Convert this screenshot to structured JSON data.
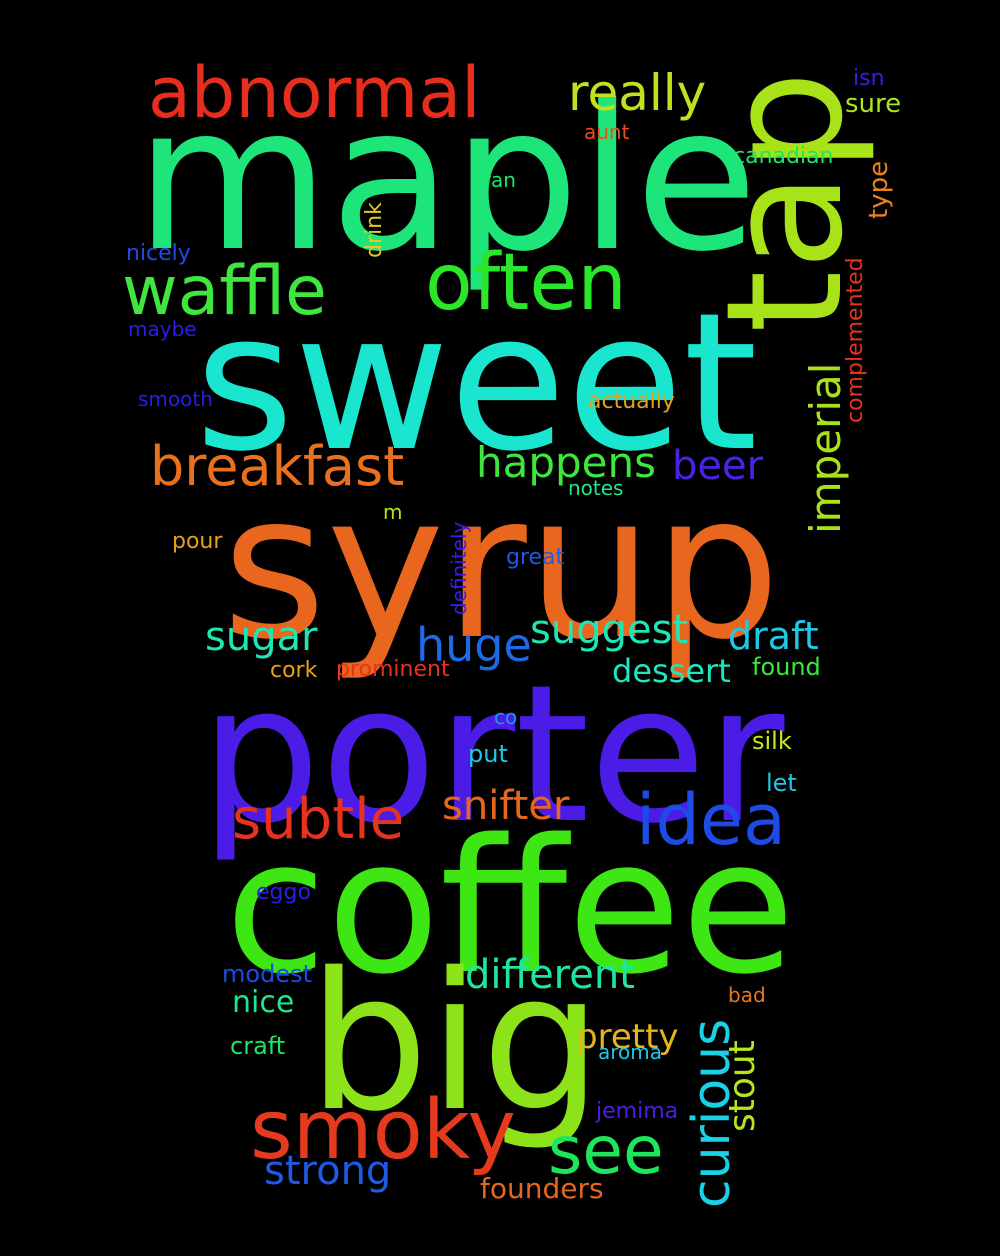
{
  "background": "#000000",
  "words": [
    {
      "text": "maple",
      "color": "#1ee57a"
    },
    {
      "text": "sweet",
      "color": "#1ae6cf"
    },
    {
      "text": "syrup",
      "color": "#e8661e"
    },
    {
      "text": "porter",
      "color": "#4a1ce6"
    },
    {
      "text": "coffee",
      "color": "#3ee614"
    },
    {
      "text": "big",
      "color": "#8de31a"
    },
    {
      "text": "tap",
      "color": "#a8e31a"
    },
    {
      "text": "abnormal",
      "color": "#e62d1e"
    },
    {
      "text": "often",
      "color": "#2be62a"
    },
    {
      "text": "waffle",
      "color": "#3ee63e"
    },
    {
      "text": "really",
      "color": "#c3e01e"
    },
    {
      "text": "breakfast",
      "color": "#e8701e"
    },
    {
      "text": "happens",
      "color": "#3ee63e"
    },
    {
      "text": "beer",
      "color": "#4a22e6"
    },
    {
      "text": "imperial",
      "color": "#a8e31a"
    },
    {
      "text": "smoky",
      "color": "#e63a1e"
    },
    {
      "text": "see",
      "color": "#1ee65a"
    },
    {
      "text": "idea",
      "color": "#1e4ae6"
    },
    {
      "text": "subtle",
      "color": "#e6321e"
    },
    {
      "text": "snifter",
      "color": "#e6661e"
    },
    {
      "text": "curious",
      "color": "#1ad2e6"
    },
    {
      "text": "huge",
      "color": "#1e6ae6"
    },
    {
      "text": "suggest",
      "color": "#1ee6b4"
    },
    {
      "text": "sugar",
      "color": "#1ee6b4"
    },
    {
      "text": "draft",
      "color": "#1ec8e6"
    },
    {
      "text": "dessert",
      "color": "#1ee6c0"
    },
    {
      "text": "different",
      "color": "#1ee6a0"
    },
    {
      "text": "stout",
      "color": "#b4e61e"
    },
    {
      "text": "strong",
      "color": "#1e5ae6"
    },
    {
      "text": "pretty",
      "color": "#e6b41e"
    },
    {
      "text": "nice",
      "color": "#1ee68a"
    },
    {
      "text": "modest",
      "color": "#1e4ae6"
    },
    {
      "text": "craft",
      "color": "#1ee664"
    },
    {
      "text": "founders",
      "color": "#e6661e"
    },
    {
      "text": "jemima",
      "color": "#4a1ee6"
    },
    {
      "text": "aroma",
      "color": "#1ec8e6"
    },
    {
      "text": "bad",
      "color": "#e6781e"
    },
    {
      "text": "eggo",
      "color": "#2a1ee6"
    },
    {
      "text": "silk",
      "color": "#c8e61e"
    },
    {
      "text": "let",
      "color": "#1ec8e6"
    },
    {
      "text": "put",
      "color": "#1ec8e6"
    },
    {
      "text": "co",
      "color": "#1e96e6"
    },
    {
      "text": "found",
      "color": "#3ee63e"
    },
    {
      "text": "prominent",
      "color": "#e6321e"
    },
    {
      "text": "cork",
      "color": "#e6a01e"
    },
    {
      "text": "great",
      "color": "#1e5ae6"
    },
    {
      "text": "pour",
      "color": "#e6a01e"
    },
    {
      "text": "m",
      "color": "#b4e61e"
    },
    {
      "text": "notes",
      "color": "#1ee68a"
    },
    {
      "text": "definitely",
      "color": "#3a1ee6"
    },
    {
      "text": "actually",
      "color": "#e6a01e"
    },
    {
      "text": "smooth",
      "color": "#2a1ee6"
    },
    {
      "text": "maybe",
      "color": "#2a1ee6"
    },
    {
      "text": "nicely",
      "color": "#1e4ae6"
    },
    {
      "text": "drink",
      "color": "#e6c81e"
    },
    {
      "text": "fan",
      "color": "#1ee664"
    },
    {
      "text": "aunt",
      "color": "#e6501e"
    },
    {
      "text": "canadian",
      "color": "#1ee664"
    },
    {
      "text": "isn",
      "color": "#3a1ee6"
    },
    {
      "text": "sure",
      "color": "#a8e61e"
    },
    {
      "text": "type",
      "color": "#e6821e"
    },
    {
      "text": "complemented",
      "color": "#e6321e"
    }
  ]
}
